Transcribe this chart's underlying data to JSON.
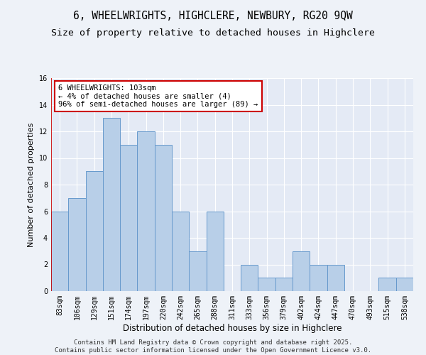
{
  "title": "6, WHEELWRIGHTS, HIGHCLERE, NEWBURY, RG20 9QW",
  "subtitle": "Size of property relative to detached houses in Highclere",
  "xlabel": "Distribution of detached houses by size in Highclere",
  "ylabel": "Number of detached properties",
  "categories": [
    "83sqm",
    "106sqm",
    "129sqm",
    "151sqm",
    "174sqm",
    "197sqm",
    "220sqm",
    "242sqm",
    "265sqm",
    "288sqm",
    "311sqm",
    "333sqm",
    "356sqm",
    "379sqm",
    "402sqm",
    "424sqm",
    "447sqm",
    "470sqm",
    "493sqm",
    "515sqm",
    "538sqm"
  ],
  "values": [
    6,
    7,
    9,
    13,
    11,
    12,
    11,
    6,
    3,
    6,
    0,
    2,
    1,
    1,
    3,
    2,
    2,
    0,
    0,
    1,
    1
  ],
  "bar_color": "#b8cfe8",
  "bar_edge_color": "#6699cc",
  "annotation_line1": "6 WHEELWRIGHTS: 103sqm",
  "annotation_line2": "← 4% of detached houses are smaller (4)",
  "annotation_line3": "96% of semi-detached houses are larger (89) →",
  "ylim": [
    0,
    16
  ],
  "yticks": [
    0,
    2,
    4,
    6,
    8,
    10,
    12,
    14,
    16
  ],
  "background_color": "#eef2f8",
  "plot_bg_color": "#e4eaf5",
  "grid_color": "#ffffff",
  "vline_color": "#cc0000",
  "footer_text": "Contains HM Land Registry data © Crown copyright and database right 2025.\nContains public sector information licensed under the Open Government Licence v3.0.",
  "title_fontsize": 10.5,
  "subtitle_fontsize": 9.5,
  "xlabel_fontsize": 8.5,
  "ylabel_fontsize": 8,
  "tick_fontsize": 7,
  "annotation_fontsize": 7.5,
  "footer_fontsize": 6.5
}
